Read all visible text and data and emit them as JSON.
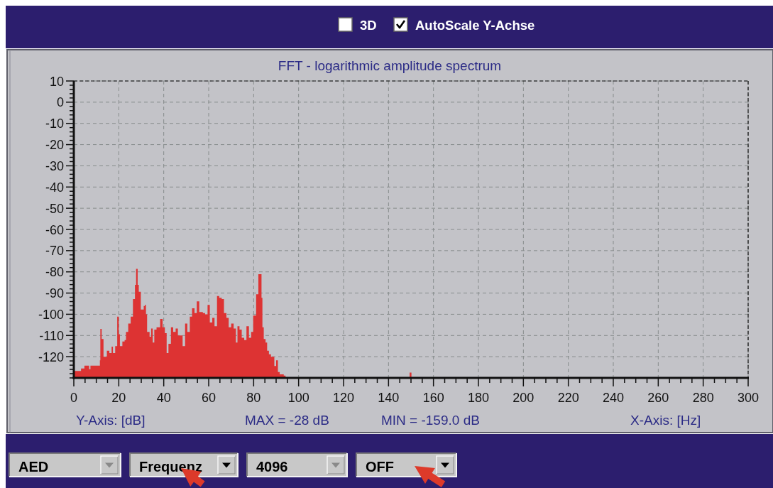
{
  "chart_data": [
    {
      "type": "other",
      "annotations": [
        "3D",
        "AutoScale Y-Achse"
      ]
    },
    {
      "type": "area",
      "title": "FFT - logarithmic amplitude spectrum",
      "xlabel": "X-Axis: [Hz]",
      "annotations": [
        "Y-Axis: [dB]",
        "MAX = -28 dB",
        "MIN = -159.0 dB"
      ],
      "grid": true,
      "xlim": [
        0,
        300
      ],
      "ylim": [
        -130,
        10
      ],
      "xticks": [
        0,
        {
          "value": 5,
          "label": null
        },
        {
          "value": 10,
          "label": null
        },
        {
          "value": 15,
          "label": null
        },
        20,
        {
          "value": 25,
          "label": null
        },
        {
          "value": 30,
          "label": null
        },
        {
          "value": 35,
          "label": null
        },
        40,
        {
          "value": 45,
          "label": null
        },
        {
          "value": 50,
          "label": null
        },
        {
          "value": 55,
          "label": null
        },
        60,
        {
          "value": 65,
          "label": null
        },
        {
          "value": 70,
          "label": null
        },
        {
          "value": 75,
          "label": null
        },
        80,
        {
          "value": 85,
          "label": null
        },
        {
          "value": 90,
          "label": null
        },
        {
          "value": 95,
          "label": null
        },
        100,
        {
          "value": 105,
          "label": null
        },
        {
          "value": 110,
          "label": null
        },
        {
          "value": 115,
          "label": null
        },
        120,
        {
          "value": 125,
          "label": null
        },
        {
          "value": 130,
          "label": null
        },
        {
          "value": 135,
          "label": null
        },
        140,
        {
          "value": 145,
          "label": null
        },
        {
          "value": 150,
          "label": null
        },
        {
          "value": 155,
          "label": null
        },
        160,
        {
          "value": 165,
          "label": null
        },
        {
          "value": 170,
          "label": null
        },
        {
          "value": 175,
          "label": null
        },
        180,
        {
          "value": 185,
          "label": null
        },
        {
          "value": 190,
          "label": null
        },
        {
          "value": 195,
          "label": null
        },
        200,
        {
          "value": 205,
          "label": null
        },
        {
          "value": 210,
          "label": null
        },
        {
          "value": 215,
          "label": null
        },
        220,
        {
          "value": 225,
          "label": null
        },
        {
          "value": 230,
          "label": null
        },
        {
          "value": 235,
          "label": null
        },
        240,
        {
          "value": 245,
          "label": null
        },
        {
          "value": 250,
          "label": null
        },
        {
          "value": 255,
          "label": null
        },
        260,
        {
          "value": 265,
          "label": null
        },
        {
          "value": 270,
          "label": null
        },
        {
          "value": 275,
          "label": null
        },
        280,
        {
          "value": 285,
          "label": null
        },
        {
          "value": 290,
          "label": null
        },
        {
          "value": 295,
          "label": null
        },
        300
      ],
      "yticks": [
        {
          "value": -130,
          "label": null
        },
        {
          "value": -128,
          "label": null
        },
        {
          "value": -126,
          "label": null
        },
        {
          "value": -124,
          "label": null
        },
        {
          "value": -122,
          "label": null
        },
        -120,
        {
          "value": -118,
          "label": null
        },
        {
          "value": -116,
          "label": null
        },
        {
          "value": -114,
          "label": null
        },
        {
          "value": -112,
          "label": null
        },
        -110,
        {
          "value": -108,
          "label": null
        },
        {
          "value": -106,
          "label": null
        },
        {
          "value": -104,
          "label": null
        },
        {
          "value": -102,
          "label": null
        },
        -100,
        {
          "value": -98,
          "label": null
        },
        {
          "value": -96,
          "label": null
        },
        {
          "value": -94,
          "label": null
        },
        {
          "value": -92,
          "label": null
        },
        -90,
        {
          "value": -88,
          "label": null
        },
        {
          "value": -86,
          "label": null
        },
        {
          "value": -84,
          "label": null
        },
        {
          "value": -82,
          "label": null
        },
        -80,
        {
          "value": -78,
          "label": null
        },
        {
          "value": -76,
          "label": null
        },
        {
          "value": -74,
          "label": null
        },
        {
          "value": -72,
          "label": null
        },
        -70,
        {
          "value": -68,
          "label": null
        },
        {
          "value": -66,
          "label": null
        },
        {
          "value": -64,
          "label": null
        },
        {
          "value": -62,
          "label": null
        },
        -60,
        {
          "value": -58,
          "label": null
        },
        {
          "value": -56,
          "label": null
        },
        {
          "value": -54,
          "label": null
        },
        {
          "value": -52,
          "label": null
        },
        -50,
        {
          "value": -48,
          "label": null
        },
        {
          "value": -46,
          "label": null
        },
        {
          "value": -44,
          "label": null
        },
        {
          "value": -42,
          "label": null
        },
        -40,
        {
          "value": -38,
          "label": null
        },
        {
          "value": -36,
          "label": null
        },
        {
          "value": -34,
          "label": null
        },
        {
          "value": -32,
          "label": null
        },
        -30,
        {
          "value": -28,
          "label": null
        },
        {
          "value": -26,
          "label": null
        },
        {
          "value": -24,
          "label": null
        },
        {
          "value": -22,
          "label": null
        },
        -20,
        {
          "value": -18,
          "label": null
        },
        {
          "value": -16,
          "label": null
        },
        {
          "value": -14,
          "label": null
        },
        {
          "value": -12,
          "label": null
        },
        -10,
        {
          "value": -8,
          "label": null
        },
        {
          "value": -6,
          "label": null
        },
        {
          "value": -4,
          "label": null
        },
        {
          "value": -2,
          "label": null
        },
        0,
        {
          "value": 2,
          "label": null
        },
        {
          "value": 4,
          "label": null
        },
        {
          "value": 6,
          "label": null
        },
        {
          "value": 8,
          "label": null
        },
        10
      ],
      "x": [
        0,
        0,
        3.2,
        3.2,
        4.7,
        4.7,
        6.8,
        6.8,
        7.4,
        7.4,
        11.6,
        11.6,
        11.8,
        11.8,
        12.4,
        12.4,
        13.2,
        13.2,
        14.7,
        14.7,
        15.8,
        15.8,
        16.8,
        16.8,
        17.4,
        17.4,
        18.4,
        18.4,
        19.3,
        19.3,
        20,
        20,
        20.5,
        20.5,
        21.6,
        21.6,
        22.6,
        22.6,
        23.2,
        23.2,
        24.2,
        24.2,
        25.3,
        25.3,
        26.3,
        26.3,
        27.2,
        27.2,
        27.7,
        27.7,
        28.4,
        28.4,
        28.9,
        28.9,
        29.8,
        29.8,
        31.1,
        31.1,
        31.6,
        31.6,
        32.1,
        32.1,
        32.6,
        32.6,
        33.7,
        33.7,
        34.4,
        34.4,
        35.1,
        35.1,
        35.8,
        35.8,
        36.8,
        36.8,
        38.4,
        38.4,
        39.5,
        39.5,
        40.5,
        40.5,
        41.3,
        41.3,
        42.1,
        42.1,
        43.2,
        43.2,
        44.2,
        44.2,
        45.3,
        45.3,
        46.3,
        46.3,
        48.4,
        48.4,
        49.5,
        49.5,
        50.5,
        50.5,
        51.6,
        51.6,
        52.6,
        52.6,
        53.7,
        53.7,
        54.7,
        54.7,
        55.8,
        55.8,
        57.4,
        57.4,
        58.4,
        58.4,
        59.5,
        59.5,
        60.5,
        60.5,
        61.6,
        61.6,
        62.6,
        62.6,
        63.7,
        63.7,
        64.7,
        64.7,
        65.8,
        65.8,
        66.8,
        66.8,
        67.9,
        67.9,
        68.9,
        68.9,
        70,
        70,
        71.1,
        71.1,
        72.1,
        72.1,
        72.8,
        72.8,
        73.7,
        73.7,
        74.7,
        74.7,
        75.8,
        75.8,
        76.8,
        76.8,
        77.9,
        77.9,
        78.9,
        78.9,
        79.8,
        79.8,
        81.1,
        81.1,
        82.1,
        82.1,
        83.5,
        83.5,
        83.9,
        83.9,
        84.5,
        84.5,
        85.3,
        85.3,
        86,
        86,
        86.8,
        86.8,
        87.7,
        87.7,
        89.2,
        89.2,
        90,
        90,
        90.8,
        90.8,
        91.6,
        91.6,
        93.4,
        93.4,
        94.2,
        94.2,
        95,
        95,
        149.4,
        149.4,
        150.2,
        150.2
      ],
      "series": [
        {
          "color": "#dd3333",
          "values": [
            -130,
            -126.7,
            -126.7,
            -125.6,
            -125.6,
            -124.2,
            -124.2,
            -125.9,
            -125.9,
            -124.2,
            -124.2,
            -121.7,
            -121.7,
            -106.9,
            -106.9,
            -111.7,
            -111.7,
            -120,
            -120,
            -117.2,
            -117.2,
            -118.3,
            -118.3,
            -115.3,
            -115.3,
            -118.3,
            -118.3,
            -115,
            -115,
            -101.1,
            -101.1,
            -109.4,
            -109.4,
            -115,
            -115,
            -112.8,
            -112.8,
            -112.2,
            -112.2,
            -108.3,
            -108.3,
            -104.4,
            -104.4,
            -101.1,
            -101.1,
            -92.8,
            -92.8,
            -86.1,
            -86.1,
            -78.6,
            -78.6,
            -86.1,
            -86.1,
            -89.4,
            -89.4,
            -97.8,
            -97.8,
            -96.1,
            -96.1,
            -95.6,
            -95.6,
            -100,
            -100,
            -108.3,
            -108.3,
            -110.6,
            -110.6,
            -106.7,
            -106.7,
            -113.3,
            -113.3,
            -107.2,
            -107.2,
            -106.1,
            -106.1,
            -102.2,
            -102.2,
            -106.1,
            -106.1,
            -108.9,
            -108.9,
            -118.3,
            -118.3,
            -113.9,
            -113.9,
            -106.1,
            -106.1,
            -108.3,
            -108.3,
            -106.7,
            -106.7,
            -110,
            -110,
            -115,
            -115,
            -104.4,
            -104.4,
            -108.3,
            -108.3,
            -101.1,
            -101.1,
            -97.2,
            -97.2,
            -99.4,
            -99.4,
            -93.9,
            -93.9,
            -98.9,
            -98.9,
            -99.4,
            -99.4,
            -100,
            -100,
            -95.6,
            -95.6,
            -103.9,
            -103.9,
            -101.7,
            -101.7,
            -105.6,
            -105.6,
            -91.4,
            -91.4,
            -92.2,
            -92.2,
            -92.8,
            -92.8,
            -99.4,
            -99.4,
            -101.7,
            -101.7,
            -106.1,
            -106.1,
            -104.4,
            -104.4,
            -106.7,
            -106.7,
            -113.3,
            -113.3,
            -105.6,
            -105.6,
            -107.2,
            -107.2,
            -111.1,
            -111.1,
            -112.2,
            -112.2,
            -105.6,
            -105.6,
            -111.1,
            -111.1,
            -108.3,
            -108.3,
            -100.6,
            -100.6,
            -90.6,
            -90.6,
            -81.1,
            -81.1,
            -92.2,
            -92.2,
            -106.1,
            -106.1,
            -111.7,
            -111.7,
            -113.3,
            -113.3,
            -117.2,
            -117.2,
            -118.9,
            -118.9,
            -120,
            -120,
            -124.4,
            -124.4,
            -121.7,
            -121.7,
            -127.2,
            -127.2,
            -128.3,
            -128.3,
            -128.9,
            -128.9,
            -129.7,
            -129.7,
            -130,
            -130,
            -127.5,
            -127.5,
            -130
          ]
        }
      ]
    },
    {
      "type": "other",
      "annotations": [
        "AED",
        "Frequenz",
        "4096",
        "OFF"
      ]
    }
  ]
}
